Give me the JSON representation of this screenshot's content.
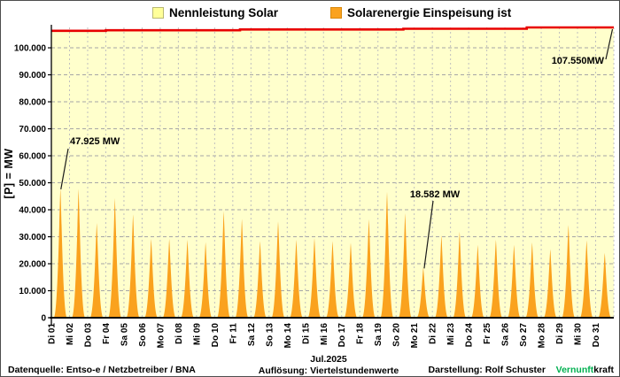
{
  "chart_data": {
    "type": "area",
    "title": "",
    "ylabel": "[P] =  MW",
    "ylim": [
      0,
      107550
    ],
    "y_tick_labels": [
      "0",
      "10.000",
      "20.000",
      "30.000",
      "40.000",
      "50.000",
      "60.000",
      "70.000",
      "80.000",
      "90.000",
      "100.000"
    ],
    "y_tick_values": [
      0,
      10000,
      20000,
      30000,
      40000,
      50000,
      60000,
      70000,
      80000,
      90000,
      100000
    ],
    "x_labels": [
      "Di 01",
      "Mi 02",
      "Do 03",
      "Fr 04",
      "Sa 05",
      "So 06",
      "Mo 07",
      "Di 08",
      "Mi 09",
      "Do 10",
      "Fr 11",
      "Sa 12",
      "So 13",
      "Mo 14",
      "Di 15",
      "Mi 16",
      "Do 17",
      "Fr 18",
      "Sa 19",
      "So 20",
      "Mo 21",
      "Di 22",
      "Mi 23",
      "Do 24",
      "Fr 25",
      "Sa 26",
      "So 27",
      "Mo 28",
      "Di 29",
      "Mi 30",
      "Do 31"
    ],
    "grid": {
      "horizontal": "dashed",
      "vertical": "dashed-per-day"
    },
    "legend_position": "top-center",
    "series": [
      {
        "name": "Nennleistung Solar",
        "render": "stepped-capacity-line-with-area-fill",
        "line_color": "#e80000",
        "area_fill": "#ffffcc",
        "points_day_mw": [
          [
            0,
            106300
          ],
          [
            3,
            106300
          ],
          [
            3,
            106500
          ],
          [
            10.4,
            106500
          ],
          [
            10.4,
            106800
          ],
          [
            19.4,
            106800
          ],
          [
            19.4,
            107050
          ],
          [
            26.2,
            107050
          ],
          [
            26.2,
            107550
          ],
          [
            31,
            107550
          ]
        ]
      },
      {
        "name": "Solarenergie Einspeisung ist",
        "render": "daily-solar-peaks",
        "color": "#faa21e",
        "daily_peak_mw": [
          47925,
          47700,
          35100,
          44300,
          38300,
          29200,
          29200,
          28900,
          28000,
          39400,
          36600,
          28400,
          35700,
          28900,
          29500,
          28400,
          27800,
          36500,
          46600,
          38700,
          18582,
          30500,
          31900,
          27000,
          28900,
          27000,
          27900,
          25400,
          34400,
          28700,
          24000
        ]
      }
    ],
    "annotations": [
      {
        "label": "47.925 MW",
        "day": "Di 01",
        "day_index": 0,
        "value_mw": 47925
      },
      {
        "label": "18.582 MW",
        "day": "Mo 21",
        "day_index": 20,
        "value_mw": 18582
      },
      {
        "label": "107.550MW",
        "series": "Nennleistung Solar",
        "value_mw": 107550
      }
    ]
  },
  "footer": {
    "source": "Datenquelle:  Entso-e  / Netzbetreiber / BNA",
    "month": "Jul.2025",
    "resolution": "Auflösung: Viertelstundenwerte",
    "credit": "Darstellung:  Rolf Schuster",
    "brand": {
      "green": "Vernunft",
      "black": "kraft"
    }
  },
  "colors": {
    "plot_background": "#ffffcc",
    "solar_fill": "#faa21e",
    "capacity_line": "#e80000",
    "h_grid": "#a6a6a6",
    "v_grid": "#bfbfbf",
    "axis": "#000000",
    "brand_green": "#00b050"
  }
}
